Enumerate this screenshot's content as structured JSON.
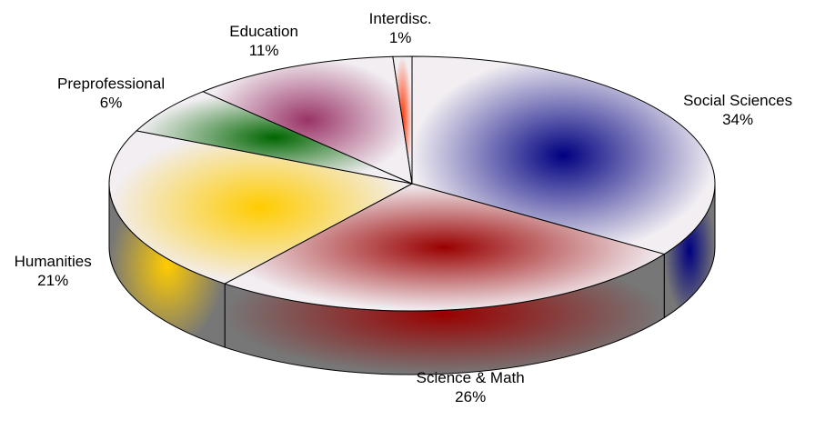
{
  "chart_data": {
    "type": "pie3d",
    "categories": [
      "Social Sciences",
      "Science & Math",
      "Humanities",
      "Preprofessional",
      "Education",
      "Interdisc."
    ],
    "values": [
      34,
      26,
      21,
      6,
      11,
      1
    ],
    "value_labels": [
      "34%",
      "26%",
      "21%",
      "6%",
      "11%",
      "1%"
    ],
    "colors": [
      "#000080",
      "#990000",
      "#ffcc00",
      "#006600",
      "#993366",
      "#ff3300"
    ]
  }
}
